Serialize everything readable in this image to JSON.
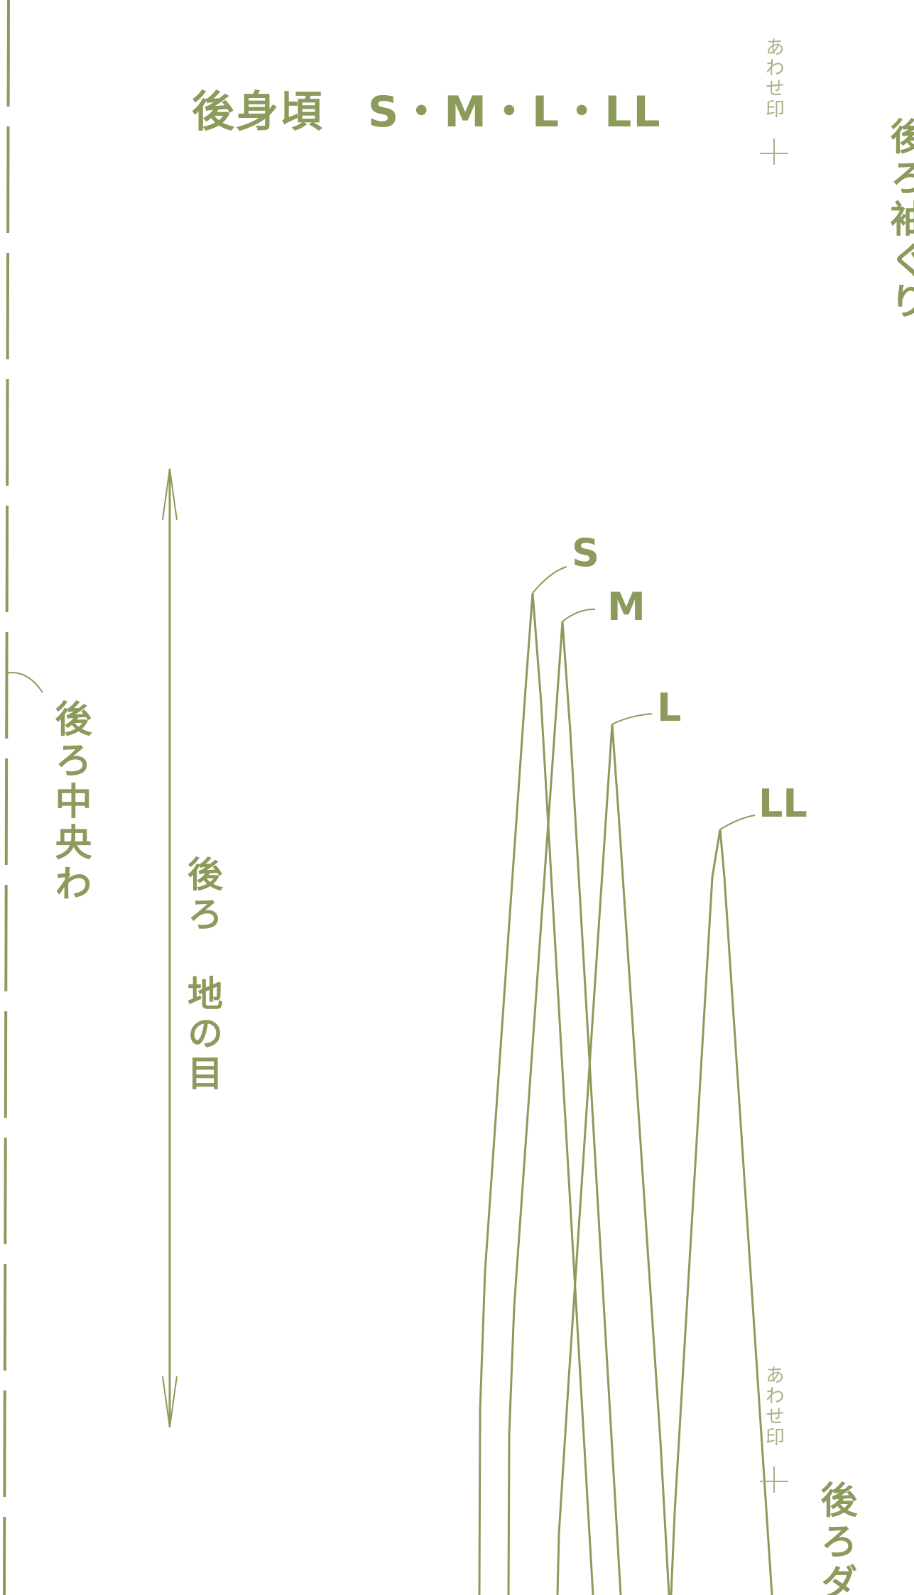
{
  "title": "後身頃　S・M・L・LL",
  "sizes": {
    "s": "S",
    "m": "M",
    "l": "L",
    "ll": "LL"
  },
  "labels": {
    "center_back_fold": "後ろ中央わ",
    "grainline": "後ろ　地の目",
    "armhole": "後ろ袖ぐり",
    "dart": "後ろダ",
    "notch_top": "あわせ印",
    "notch_bottom": "あわせ印"
  },
  "colors": {
    "line": "#8c9a5b",
    "text": "#8c9a5b",
    "notch_text": "#a9b486"
  }
}
